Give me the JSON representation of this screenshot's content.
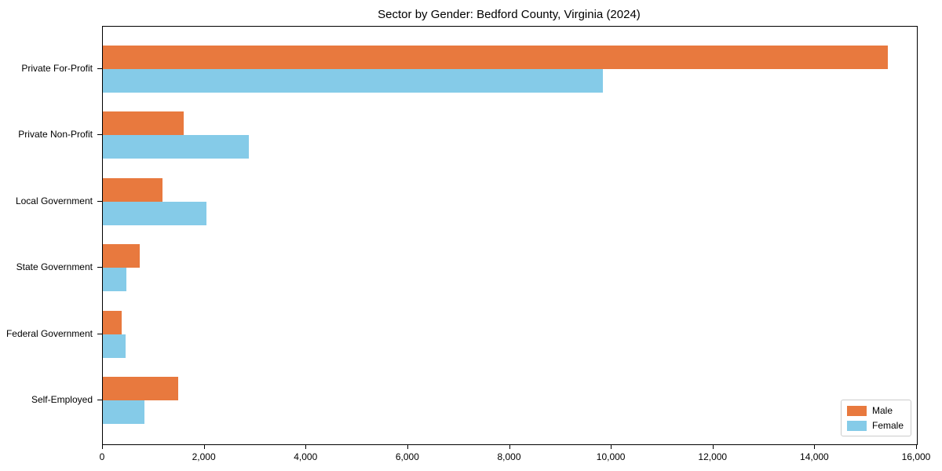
{
  "chart_data": {
    "type": "bar",
    "orientation": "horizontal",
    "title": "Sector by Gender: Bedford County, Virginia (2024)",
    "categories": [
      "Private For-Profit",
      "Private Non-Profit",
      "Local Government",
      "State Government",
      "Federal Government",
      "Self-Employed"
    ],
    "series": [
      {
        "name": "Male",
        "color": "#e8793e",
        "values": [
          15430,
          1590,
          1170,
          725,
          370,
          1480
        ]
      },
      {
        "name": "Female",
        "color": "#85cbe8",
        "values": [
          9830,
          2870,
          2040,
          460,
          450,
          820
        ]
      }
    ],
    "xlabel": "",
    "ylabel": "",
    "xlim": [
      0,
      16000
    ],
    "xticks": [
      0,
      2000,
      4000,
      6000,
      8000,
      10000,
      12000,
      14000,
      16000
    ],
    "xtick_labels": [
      "0",
      "2,000",
      "4,000",
      "6,000",
      "8,000",
      "10,000",
      "12,000",
      "14,000",
      "16,000"
    ],
    "grid": false,
    "legend": {
      "position": "lower right",
      "entries": [
        "Male",
        "Female"
      ]
    }
  }
}
